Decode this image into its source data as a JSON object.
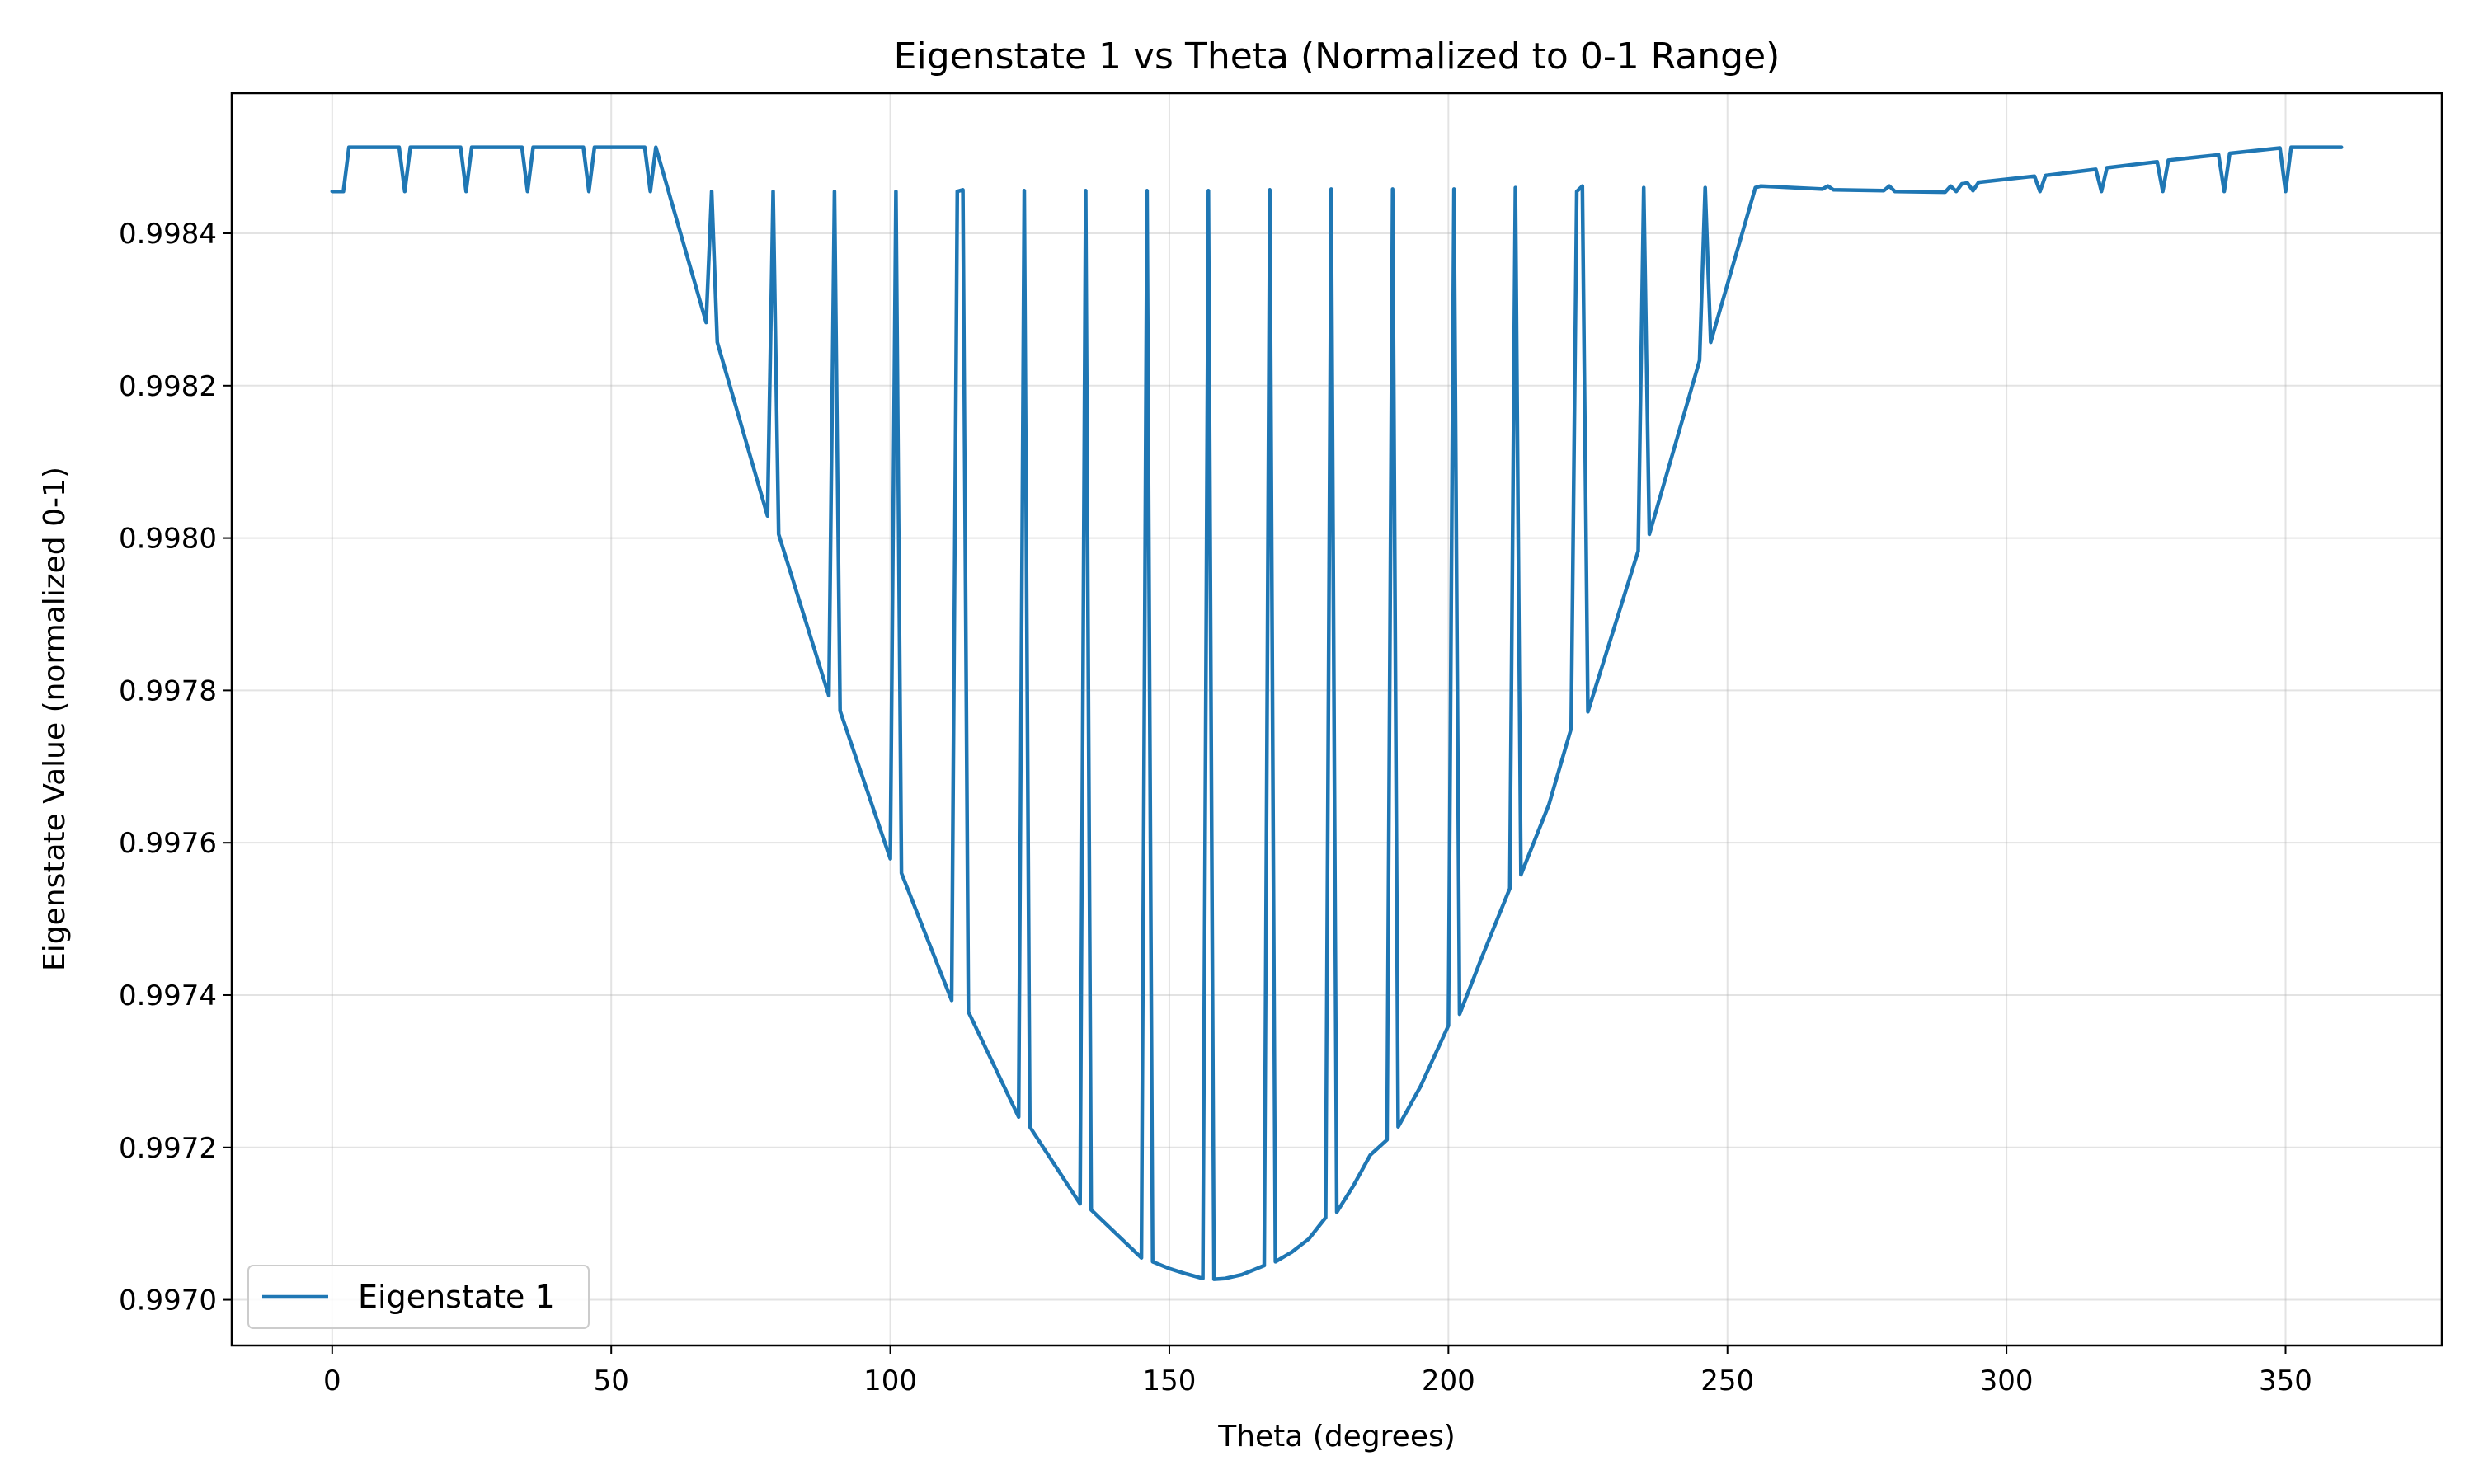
{
  "chart_data": {
    "type": "line",
    "title": "Eigenstate 1 vs Theta (Normalized to 0-1 Range)",
    "xlabel": "Theta (degrees)",
    "ylabel": "Eigenstate Value (normalized 0-1)",
    "xlim": [
      -18,
      378
    ],
    "ylim": [
      0.99694,
      0.998584
    ],
    "xticks": [
      0,
      50,
      100,
      150,
      200,
      250,
      300,
      350
    ],
    "yticks": [
      0.997,
      0.9972,
      0.9974,
      0.9976,
      0.9978,
      0.998,
      0.9982,
      0.9984
    ],
    "ytick_labels": [
      "0.9970",
      "0.9972",
      "0.9974",
      "0.9976",
      "0.9978",
      "0.9980",
      "0.9982",
      "0.9984"
    ],
    "grid": true,
    "legend_position": "lower-left",
    "colors": {
      "series": "#1f77b4",
      "grid": "#b0b0b0",
      "frame": "#000000"
    },
    "series": [
      {
        "name": "Eigenstate 1",
        "x": [
          0,
          2,
          3,
          12,
          13,
          14,
          23,
          24,
          25,
          34,
          35,
          36,
          45,
          46,
          47,
          56,
          57,
          58,
          67,
          68,
          69,
          78,
          79,
          80,
          89,
          90,
          91,
          100,
          101,
          102,
          111,
          112,
          113,
          114,
          123,
          124,
          125,
          134,
          135,
          136,
          145,
          146,
          147,
          150,
          153,
          156,
          157,
          158,
          160,
          163,
          167,
          168,
          169,
          172,
          175,
          178,
          179,
          180,
          183,
          186,
          189,
          190,
          191,
          195,
          200,
          201,
          202,
          206,
          211,
          212,
          213,
          218,
          222,
          223,
          224,
          225,
          234,
          235,
          236,
          245,
          246,
          247,
          255,
          256,
          267,
          268,
          269,
          278,
          279,
          280,
          289,
          290,
          291,
          292,
          293,
          294,
          295,
          305,
          306,
          307,
          316,
          317,
          318,
          327,
          328,
          329,
          338,
          339,
          340,
          349,
          350,
          351,
          360
        ],
        "values": [
          0.998455,
          0.998455,
          0.998513,
          0.998513,
          0.998455,
          0.998513,
          0.998513,
          0.998455,
          0.998513,
          0.998513,
          0.998455,
          0.998513,
          0.998513,
          0.998455,
          0.998513,
          0.998513,
          0.998455,
          0.998513,
          0.998283,
          0.998455,
          0.998257,
          0.998029,
          0.998455,
          0.998005,
          0.997793,
          0.998455,
          0.997773,
          0.997579,
          0.998455,
          0.99756,
          0.997393,
          0.998455,
          0.998457,
          0.997378,
          0.99724,
          0.998456,
          0.997227,
          0.997126,
          0.998456,
          0.997118,
          0.997055,
          0.998456,
          0.99705,
          0.997041,
          0.997034,
          0.997028,
          0.998456,
          0.997027,
          0.997028,
          0.997033,
          0.997045,
          0.998457,
          0.99705,
          0.997063,
          0.99708,
          0.997108,
          0.998458,
          0.997115,
          0.99715,
          0.99719,
          0.99721,
          0.998458,
          0.997227,
          0.99728,
          0.99736,
          0.998458,
          0.997375,
          0.99745,
          0.99754,
          0.99846,
          0.997558,
          0.99765,
          0.99775,
          0.998455,
          0.998462,
          0.997772,
          0.997983,
          0.99846,
          0.998005,
          0.998233,
          0.99846,
          0.998257,
          0.99846,
          0.998462,
          0.998458,
          0.998462,
          0.998457,
          0.998456,
          0.998462,
          0.998455,
          0.998454,
          0.998462,
          0.998455,
          0.998465,
          0.998466,
          0.998456,
          0.998467,
          0.998475,
          0.998455,
          0.998476,
          0.998484,
          0.998455,
          0.998486,
          0.998494,
          0.998455,
          0.998496,
          0.998503,
          0.998455,
          0.998505,
          0.998512,
          0.998455,
          0.998513,
          0.998513
        ]
      }
    ]
  }
}
